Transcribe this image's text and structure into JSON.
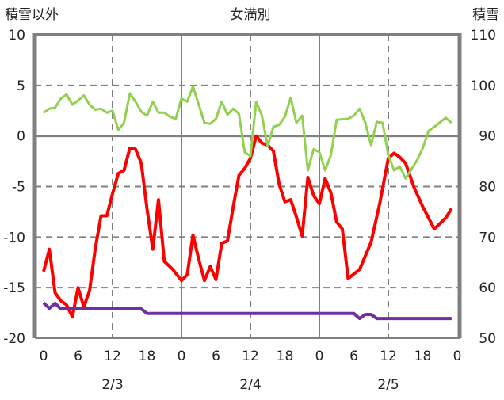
{
  "chart_data": {
    "type": "line",
    "title": "女満別",
    "ylabel_left": "積雪以外",
    "ylabel_right": "積雪",
    "xlabel": "",
    "xlim": [
      0,
      72
    ],
    "ylim_left": [
      -20,
      10
    ],
    "ylim_right": [
      50,
      110
    ],
    "grid": true,
    "x_tick_labels": [
      "0",
      "6",
      "12",
      "18",
      "0",
      "6",
      "12",
      "18",
      "0",
      "6",
      "12",
      "18",
      "0"
    ],
    "x_ticks": [
      0,
      6,
      12,
      18,
      24,
      30,
      36,
      42,
      48,
      54,
      60,
      66,
      72
    ],
    "date_labels": [
      {
        "label": "2/3",
        "x": 12
      },
      {
        "label": "2/4",
        "x": 36
      },
      {
        "label": "2/5",
        "x": 60
      }
    ],
    "y_left_ticks": [
      10,
      5,
      0,
      -5,
      -10,
      -15,
      -20
    ],
    "y_right_ticks": [
      110,
      100,
      90,
      80,
      70,
      60,
      50
    ],
    "series": [
      {
        "name": "red-series",
        "axis": "left",
        "color": "#ff0000",
        "x": [
          0,
          1,
          2,
          3,
          4,
          5,
          6,
          7,
          8,
          9,
          10,
          11,
          12,
          13,
          14,
          15,
          16,
          17,
          18,
          19,
          20,
          21,
          22.5,
          24,
          25,
          26,
          27,
          28,
          29,
          30,
          31,
          32,
          33,
          34,
          35,
          36,
          37,
          38,
          39,
          40,
          41,
          42,
          43,
          44,
          45,
          46,
          47,
          48,
          49,
          50,
          51,
          52,
          53,
          55,
          57,
          58.5,
          60,
          61,
          62,
          63,
          64.5,
          66,
          68,
          70,
          71
        ],
        "y": [
          -13.4,
          -11.2,
          -15.5,
          -16.3,
          -16.7,
          -17.9,
          -15,
          -16.9,
          -15.3,
          -11.1,
          -7.9,
          -7.9,
          -5.7,
          -3.7,
          -3.4,
          -1.2,
          -1.3,
          -2.7,
          -7.2,
          -11.2,
          -6.3,
          -12.4,
          -13.2,
          -14.3,
          -13.7,
          -9.8,
          -12.2,
          -14.3,
          -12.9,
          -14.2,
          -10.6,
          -10.4,
          -7,
          -3.9,
          -3.2,
          -2.2,
          0,
          -0.7,
          -0.9,
          -1.5,
          -4.8,
          -6.5,
          -6.3,
          -8,
          -9.9,
          -4.1,
          -5.9,
          -6.7,
          -4.2,
          -5.6,
          -8.5,
          -9.2,
          -14.1,
          -13.2,
          -10.5,
          -6.7,
          -2.2,
          -1.7,
          -2.1,
          -2.7,
          -5.1,
          -7,
          -9.2,
          -8.1,
          -7.2
        ]
      },
      {
        "name": "green-series",
        "axis": "left",
        "color": "#92d050",
        "x": [
          0,
          1,
          2,
          3,
          4,
          5,
          6,
          7,
          8,
          9,
          10,
          11,
          12,
          13,
          14,
          15,
          16,
          17,
          18,
          19,
          20,
          21,
          22,
          23,
          24,
          25,
          26,
          27,
          28,
          29,
          30,
          31,
          32,
          33,
          34,
          35,
          36,
          37,
          38,
          39,
          40,
          41,
          42,
          43,
          44,
          45,
          46,
          47,
          48,
          49,
          50,
          51,
          53,
          54,
          55,
          56,
          57,
          58,
          59,
          60,
          61,
          62,
          63,
          65,
          66,
          67,
          68,
          70,
          71
        ],
        "y": [
          2.3,
          2.7,
          2.8,
          3.7,
          4.1,
          3.1,
          3.5,
          4,
          3.1,
          2.6,
          2.7,
          2.3,
          2.5,
          0.6,
          1.3,
          4.2,
          3.4,
          2.4,
          2,
          3.4,
          2.3,
          2.3,
          1.9,
          1.7,
          3.7,
          3.4,
          4.9,
          3.1,
          1.3,
          1.2,
          1.7,
          3.4,
          2.1,
          2.7,
          2.2,
          -1.6,
          -2,
          3.4,
          2,
          -1,
          0.9,
          1.1,
          1.9,
          3.8,
          1.3,
          2,
          -3.4,
          -1.3,
          -1.6,
          -3.4,
          -1.9,
          1.6,
          1.7,
          2,
          2.7,
          1.3,
          -0.9,
          1.4,
          1.3,
          -1.9,
          -3.4,
          -3,
          -4.2,
          -2.4,
          -1.2,
          0.5,
          0.9,
          1.8,
          1.3
        ]
      },
      {
        "name": "purple-series",
        "axis": "right",
        "color": "#7030a0",
        "x": [
          0,
          1,
          2,
          3,
          17,
          18,
          54,
          55,
          56,
          57,
          58,
          71
        ],
        "y": [
          57,
          55.9,
          56.9,
          55.8,
          55.8,
          54.9,
          54.9,
          53.9,
          54.7,
          54.7,
          53.9,
          53.9
        ]
      }
    ]
  }
}
